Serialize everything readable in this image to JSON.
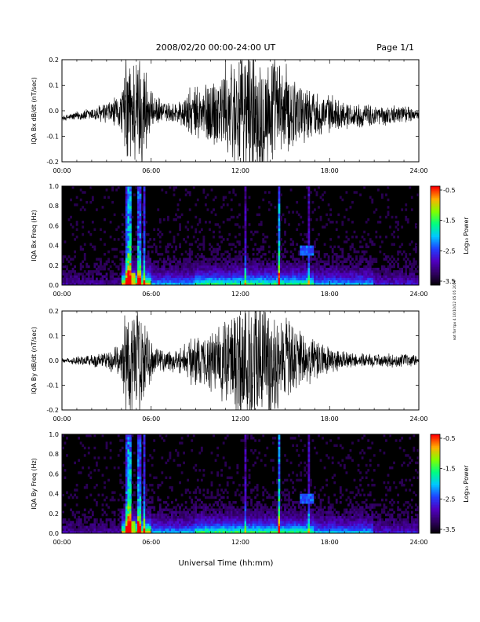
{
  "header": {
    "title": "2008/02/20  00:00-24:00 UT",
    "page": "Page 1/1"
  },
  "footer": {
    "xlabel": "Universal Time (hh:mm)"
  },
  "side_note": "not for tpx 4 10/10/12 05 05 2019",
  "colorbar": {
    "label": "Log₁₀ Power",
    "ticks": [
      "-0.5",
      "-1.5",
      "-2.5",
      "-3.5"
    ],
    "colors": [
      "#ff0000",
      "#ffb000",
      "#80ff00",
      "#00ff80",
      "#00c8ff",
      "#2040ff",
      "#5000c0",
      "#300060",
      "#000000"
    ]
  },
  "chart_data": [
    {
      "type": "line",
      "ylabel": "IQA Bx dB/dt (nT/sec)",
      "xlim": [
        0,
        24
      ],
      "ylim": [
        -0.2,
        0.2
      ],
      "xtick_labels": [
        "00:00",
        "06:00",
        "12:00",
        "18:00",
        "24:00"
      ],
      "ytick_labels": [
        "0.2",
        "0.1",
        "0.0",
        "-0.1",
        "-0.2"
      ],
      "envelope": {
        "x_hours": [
          0,
          1,
          2,
          3,
          4,
          4.3,
          5.5,
          6,
          7,
          8,
          8.5,
          9.5,
          10.5,
          11,
          12,
          13,
          14,
          15,
          16,
          17,
          18,
          19,
          20,
          21,
          22,
          23,
          24
        ],
        "baseline": [
          -0.03,
          -0.02,
          -0.015,
          -0.01,
          -0.005,
          0,
          0,
          0,
          -0.005,
          -0.01,
          -0.01,
          -0.015,
          0,
          0,
          0,
          0,
          0,
          0,
          0,
          -0.01,
          -0.01,
          -0.015,
          -0.02,
          -0.02,
          -0.02,
          -0.01,
          -0.02
        ],
        "amplitude": [
          0.01,
          0.02,
          0.03,
          0.05,
          0.08,
          0.25,
          0.25,
          0.08,
          0.04,
          0.06,
          0.1,
          0.14,
          0.18,
          0.2,
          0.3,
          0.3,
          0.25,
          0.2,
          0.14,
          0.1,
          0.08,
          0.06,
          0.05,
          0.05,
          0.04,
          0.04,
          0.02
        ]
      }
    },
    {
      "type": "heatmap",
      "ylabel": "IQA Bx Freq (Hz)",
      "xlim": [
        0,
        24
      ],
      "ylim": [
        0,
        1.0
      ],
      "xtick_labels": [
        "00:00",
        "06:00",
        "12:00",
        "18:00",
        "24:00"
      ],
      "ytick_labels": [
        "1.0",
        "0.8",
        "0.6",
        "0.4",
        "0.2",
        "0.0"
      ],
      "colorbar_range": [
        -3.5,
        -0.5
      ]
    },
    {
      "type": "line",
      "ylabel": "IQA By dB/dt (nT/sec)",
      "xlim": [
        0,
        24
      ],
      "ylim": [
        -0.2,
        0.2
      ],
      "xtick_labels": [
        "00:00",
        "06:00",
        "12:00",
        "18:00",
        "24:00"
      ],
      "ytick_labels": [
        "0.2",
        "0.1",
        "0.0",
        "-0.1",
        "-0.2"
      ],
      "envelope": {
        "x_hours": [
          0,
          1,
          2,
          3,
          4,
          4.3,
          5.5,
          6,
          7,
          8,
          8.5,
          9.5,
          10.5,
          11,
          12,
          13,
          14,
          15,
          16,
          17,
          18,
          19,
          20,
          21,
          22,
          23,
          24
        ],
        "baseline": [
          0,
          0,
          0,
          0,
          0,
          0,
          0,
          0,
          0,
          0,
          0,
          0,
          0,
          0,
          0,
          0,
          0,
          0,
          0,
          0,
          0,
          0,
          0,
          0,
          0,
          0,
          0
        ],
        "amplitude": [
          0.01,
          0.02,
          0.03,
          0.04,
          0.08,
          0.25,
          0.25,
          0.08,
          0.05,
          0.06,
          0.1,
          0.12,
          0.15,
          0.2,
          0.3,
          0.3,
          0.25,
          0.2,
          0.14,
          0.1,
          0.06,
          0.04,
          0.03,
          0.03,
          0.03,
          0.03,
          0.02
        ]
      }
    },
    {
      "type": "heatmap",
      "ylabel": "IQA By Freq (Hz)",
      "xlim": [
        0,
        24
      ],
      "ylim": [
        0,
        1.0
      ],
      "xtick_labels": [
        "00:00",
        "06:00",
        "12:00",
        "18:00",
        "24:00"
      ],
      "ytick_labels": [
        "1.0",
        "0.8",
        "0.6",
        "0.4",
        "0.2",
        "0.0"
      ],
      "colorbar_range": [
        -3.5,
        -0.5
      ]
    }
  ]
}
